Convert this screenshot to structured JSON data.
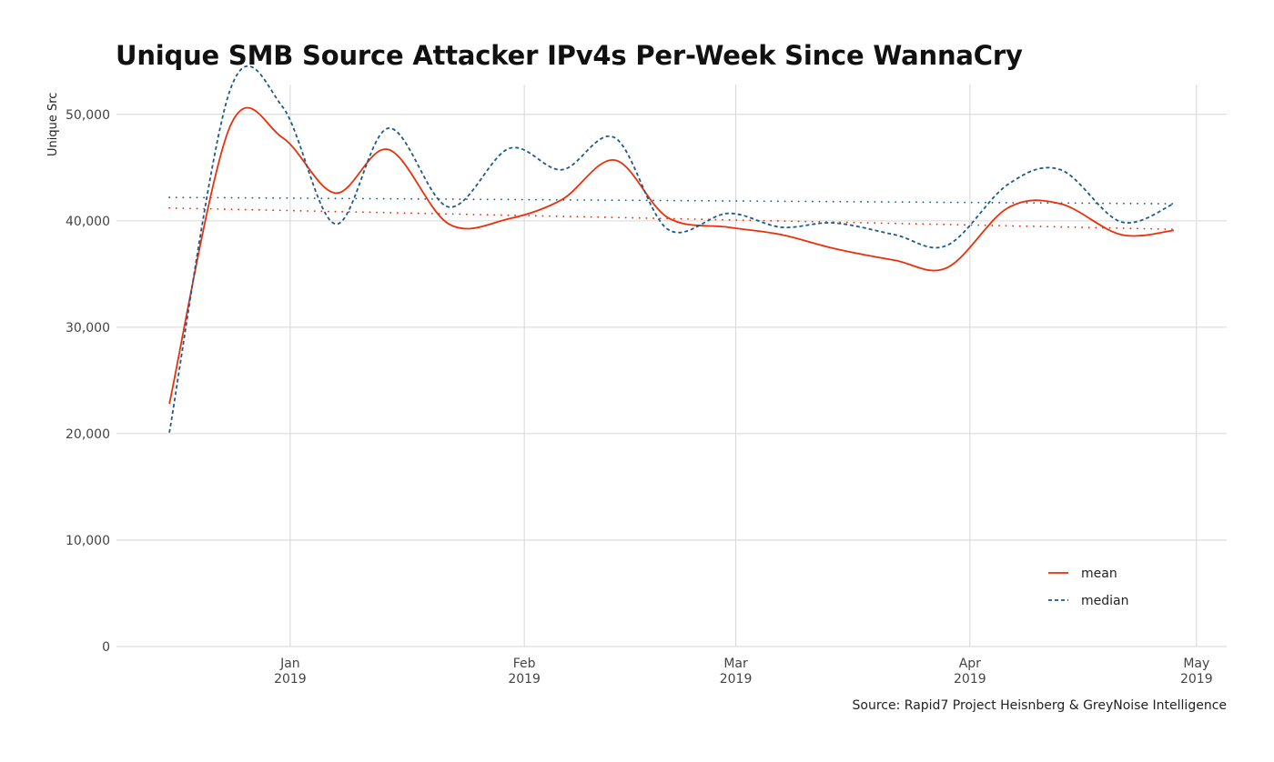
{
  "chart_data": {
    "type": "line",
    "title": "Unique SMB Source Attacker IPv4s Per-Week Since WannaCry",
    "caption": "Source: Rapid7 Project Heisnberg & GreyNoise Intelligence",
    "xlabel": "",
    "ylabel": "Unique Src",
    "ylim": [
      0,
      52800
    ],
    "xlim": [
      "2018-12-09",
      "2019-05-05"
    ],
    "grid": true,
    "legend_position": "bottom-right",
    "y_ticks": [
      {
        "value": 0,
        "label": "0"
      },
      {
        "value": 10000,
        "label": "10,000"
      },
      {
        "value": 20000,
        "label": "20,000"
      },
      {
        "value": 30000,
        "label": "30,000"
      },
      {
        "value": 40000,
        "label": "40,000"
      },
      {
        "value": 50000,
        "label": "50,000"
      }
    ],
    "x_ticks": [
      {
        "value": "2019-01-01",
        "label": "Jan",
        "sublabel": "2019"
      },
      {
        "value": "2019-02-01",
        "label": "Feb",
        "sublabel": "2019"
      },
      {
        "value": "2019-03-01",
        "label": "Mar",
        "sublabel": "2019"
      },
      {
        "value": "2019-04-01",
        "label": "Apr",
        "sublabel": "2019"
      },
      {
        "value": "2019-05-01",
        "label": "May",
        "sublabel": "2019"
      }
    ],
    "x": [
      "2018-12-16",
      "2018-12-24",
      "2018-12-31",
      "2019-01-07",
      "2019-01-14",
      "2019-01-22",
      "2019-01-30",
      "2019-02-06",
      "2019-02-13",
      "2019-02-20",
      "2019-02-28",
      "2019-03-07",
      "2019-03-14",
      "2019-03-22",
      "2019-03-29",
      "2019-04-06",
      "2019-04-13",
      "2019-04-21",
      "2019-04-28"
    ],
    "series": [
      {
        "name": "mean",
        "color": "#e8300b",
        "style": "solid",
        "values": [
          22800,
          48800,
          47800,
          42600,
          46700,
          39700,
          40200,
          42000,
          45700,
          40300,
          39400,
          38700,
          37400,
          36300,
          35600,
          41200,
          41600,
          38700,
          39100
        ],
        "trend": [
          41200,
          39200
        ]
      },
      {
        "name": "median",
        "color": "#1f5a8c",
        "style": "dashed",
        "values": [
          20100,
          52200,
          50700,
          39700,
          48700,
          41300,
          46800,
          44800,
          47800,
          39200,
          40700,
          39400,
          39800,
          38700,
          37700,
          43400,
          44800,
          39900,
          41600
        ],
        "trend": [
          42200,
          41600
        ]
      }
    ]
  }
}
